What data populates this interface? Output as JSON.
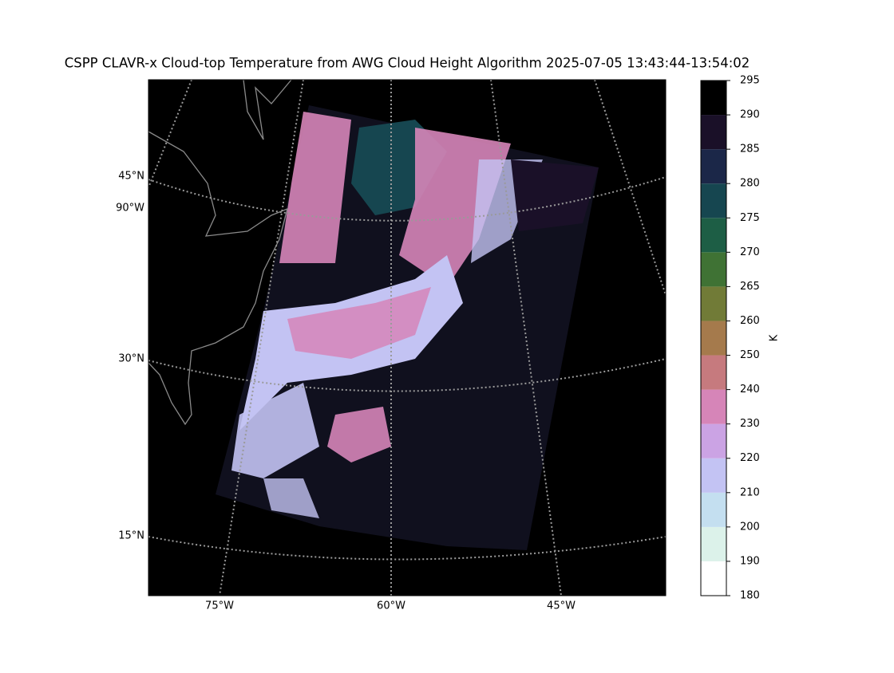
{
  "title": "CSPP CLAVR-x Cloud-top Temperature from AWG Cloud Height Algorithm 2025-07-05 13:43:44-13:54:02",
  "map": {
    "lat_labels": [
      "45°N",
      "30°N",
      "15°N"
    ],
    "lon_label_left": "90°W",
    "lon_labels_bottom": [
      "75°W",
      "60°W",
      "45°W"
    ]
  },
  "colorbar": {
    "label": "K",
    "ticks": [
      180,
      190,
      200,
      210,
      220,
      230,
      240,
      250,
      260,
      265,
      270,
      275,
      280,
      285,
      290,
      295
    ],
    "colors": [
      "#ffffff",
      "#dcf2ea",
      "#c4dff0",
      "#c3c3f3",
      "#cba3e4",
      "#d685b8",
      "#c67a7e",
      "#a57a4c",
      "#717b37",
      "#3f7234",
      "#1d5e45",
      "#164650",
      "#1b2748",
      "#1a1028",
      "#000000"
    ]
  }
}
